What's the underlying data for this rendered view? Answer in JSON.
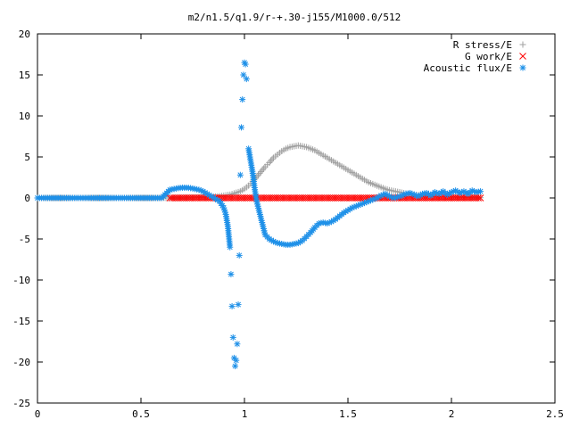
{
  "chart_data": {
    "type": "scatter",
    "title": "m2/n1.5/q1.9/r-+.30-j155/M1000.0/512",
    "xlabel": "",
    "ylabel": "",
    "xlim": [
      0,
      2.5
    ],
    "ylim": [
      -25,
      20
    ],
    "xticks": [
      0,
      0.5,
      1,
      1.5,
      2,
      2.5
    ],
    "xtick_labels": [
      "0",
      "0.5",
      "1",
      "1.5",
      "2",
      "2.5"
    ],
    "yticks": [
      -25,
      -20,
      -15,
      -10,
      -5,
      0,
      5,
      10,
      15,
      20
    ],
    "ytick_labels": [
      "-25",
      "-20",
      "-15",
      "-10",
      "-5",
      "0",
      "5",
      "10",
      "15",
      "20"
    ],
    "grid": false,
    "legend_position": "top-right",
    "series": [
      {
        "name": "R stress/E",
        "marker": "+",
        "color": "#a0a0a0",
        "x": [
          0.0,
          0.2,
          0.4,
          0.64,
          0.7,
          0.76,
          0.82,
          0.88,
          0.93,
          0.98,
          1.0,
          1.02,
          1.04,
          1.06,
          1.08,
          1.1,
          1.12,
          1.14,
          1.16,
          1.18,
          1.2,
          1.22,
          1.24,
          1.26,
          1.28,
          1.3,
          1.32,
          1.34,
          1.36,
          1.38,
          1.4,
          1.42,
          1.44,
          1.46,
          1.48,
          1.5,
          1.52,
          1.54,
          1.56,
          1.58,
          1.6,
          1.62,
          1.64,
          1.66,
          1.68,
          1.7,
          1.72,
          1.74,
          1.76,
          1.78,
          1.8,
          1.84,
          1.88,
          1.92,
          1.96,
          2.0,
          2.05,
          2.1,
          2.14
        ],
        "y": [
          0,
          0,
          0,
          0,
          0.02,
          0.05,
          0.1,
          0.2,
          0.4,
          0.8,
          1.1,
          1.5,
          2.0,
          2.6,
          3.2,
          3.8,
          4.3,
          4.9,
          5.3,
          5.7,
          6.0,
          6.2,
          6.3,
          6.4,
          6.3,
          6.2,
          6.0,
          5.8,
          5.5,
          5.2,
          4.9,
          4.6,
          4.3,
          4.0,
          3.7,
          3.4,
          3.1,
          2.8,
          2.5,
          2.2,
          1.9,
          1.7,
          1.5,
          1.3,
          1.1,
          0.95,
          0.85,
          0.75,
          0.65,
          0.55,
          0.45,
          0.35,
          0.27,
          0.2,
          0.15,
          0.1,
          0.07,
          0.05,
          0.03
        ]
      },
      {
        "name": "G work/E",
        "marker": "x",
        "color": "#ff0000",
        "x": [
          0.64,
          0.7,
          0.76,
          0.82,
          0.88,
          0.94,
          1.0,
          1.06,
          1.12,
          1.18,
          1.24,
          1.3,
          1.36,
          1.42,
          1.48,
          1.54,
          1.6,
          1.66,
          1.72,
          1.78,
          1.84,
          1.9,
          1.96,
          2.02,
          2.08,
          2.14
        ],
        "y": [
          0,
          0,
          0,
          0,
          0,
          0,
          0,
          0,
          0,
          0,
          0,
          0,
          0,
          0,
          0,
          0,
          0,
          0,
          0,
          0,
          0,
          0,
          0,
          0,
          0,
          0
        ]
      },
      {
        "name": "Acoustic flux/E",
        "marker": "*",
        "color": "#1e90e8",
        "x": [
          0.0,
          0.1,
          0.2,
          0.3,
          0.4,
          0.5,
          0.6,
          0.64,
          0.66,
          0.68,
          0.7,
          0.72,
          0.74,
          0.76,
          0.78,
          0.8,
          0.82,
          0.84,
          0.86,
          0.88,
          0.9,
          0.91,
          0.92,
          0.93,
          0.935,
          0.94,
          0.945,
          0.95,
          0.955,
          0.96,
          0.965,
          0.97,
          0.975,
          0.98,
          0.985,
          0.99,
          0.995,
          1.0,
          1.005,
          1.01,
          1.02,
          1.03,
          1.04,
          1.05,
          1.06,
          1.07,
          1.08,
          1.09,
          1.1,
          1.12,
          1.14,
          1.16,
          1.18,
          1.2,
          1.22,
          1.24,
          1.26,
          1.28,
          1.3,
          1.32,
          1.34,
          1.36,
          1.38,
          1.4,
          1.42,
          1.44,
          1.46,
          1.48,
          1.5,
          1.52,
          1.54,
          1.56,
          1.58,
          1.6,
          1.62,
          1.64,
          1.66,
          1.68,
          1.7,
          1.72,
          1.74,
          1.76,
          1.78,
          1.8,
          1.82,
          1.84,
          1.86,
          1.88,
          1.9,
          1.92,
          1.94,
          1.96,
          1.98,
          2.0,
          2.02,
          2.04,
          2.06,
          2.08,
          2.1,
          2.12,
          2.14
        ],
        "y": [
          0,
          0,
          0,
          0,
          0,
          0,
          0,
          1.0,
          1.1,
          1.2,
          1.25,
          1.25,
          1.2,
          1.1,
          1.0,
          0.8,
          0.5,
          0.2,
          -0.1,
          -0.4,
          -1.2,
          -2.0,
          -3.5,
          -6.0,
          -9.3,
          -13.2,
          -17.0,
          -19.5,
          -20.5,
          -19.8,
          -17.8,
          -13.0,
          -7.0,
          2.8,
          8.6,
          12.0,
          15.0,
          16.5,
          16.3,
          14.5,
          6.0,
          4.5,
          3.0,
          1.0,
          -0.5,
          -1.5,
          -2.5,
          -3.5,
          -4.5,
          -5.0,
          -5.3,
          -5.5,
          -5.6,
          -5.7,
          -5.7,
          -5.6,
          -5.5,
          -5.2,
          -4.7,
          -4.2,
          -3.6,
          -3.1,
          -3.0,
          -3.1,
          -2.9,
          -2.6,
          -2.2,
          -1.8,
          -1.5,
          -1.2,
          -1.0,
          -0.8,
          -0.6,
          -0.4,
          -0.2,
          0.0,
          0.3,
          0.5,
          0.2,
          0.0,
          0.1,
          0.3,
          0.5,
          0.6,
          0.4,
          0.2,
          0.5,
          0.6,
          0.3,
          0.7,
          0.5,
          0.8,
          0.4,
          0.7,
          0.9,
          0.6,
          0.8,
          0.5,
          0.9,
          0.7,
          0.8
        ]
      }
    ]
  }
}
